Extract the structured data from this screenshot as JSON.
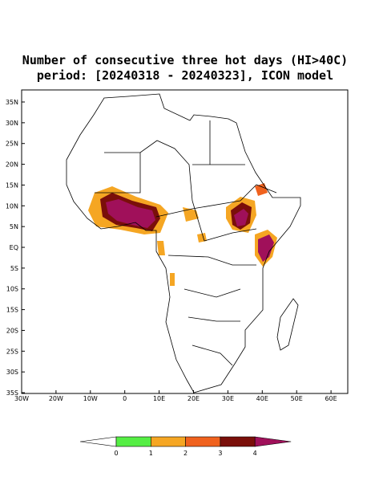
{
  "title": [
    "Number of consecutive three hot days (HI>40C)",
    "period: [20240318 - 20240323], ICON model"
  ],
  "lat_labels": [
    "35N",
    "30N",
    "25N",
    "20N",
    "15N",
    "10N",
    "5N",
    "EQ",
    "5S",
    "10S",
    "15S",
    "20S",
    "25S",
    "30S",
    "35S"
  ],
  "lon_labels": [
    "30W",
    "20W",
    "10W",
    "0",
    "10E",
    "20E",
    "30E",
    "40E",
    "50E",
    "60E"
  ],
  "colorbar": {
    "ticks": [
      0,
      1,
      2,
      3,
      4
    ],
    "colors": [
      "#ffffff",
      "#55ee44",
      "#f5a623",
      "#f0621e",
      "#7a0f0a",
      "#a0105a"
    ]
  }
}
